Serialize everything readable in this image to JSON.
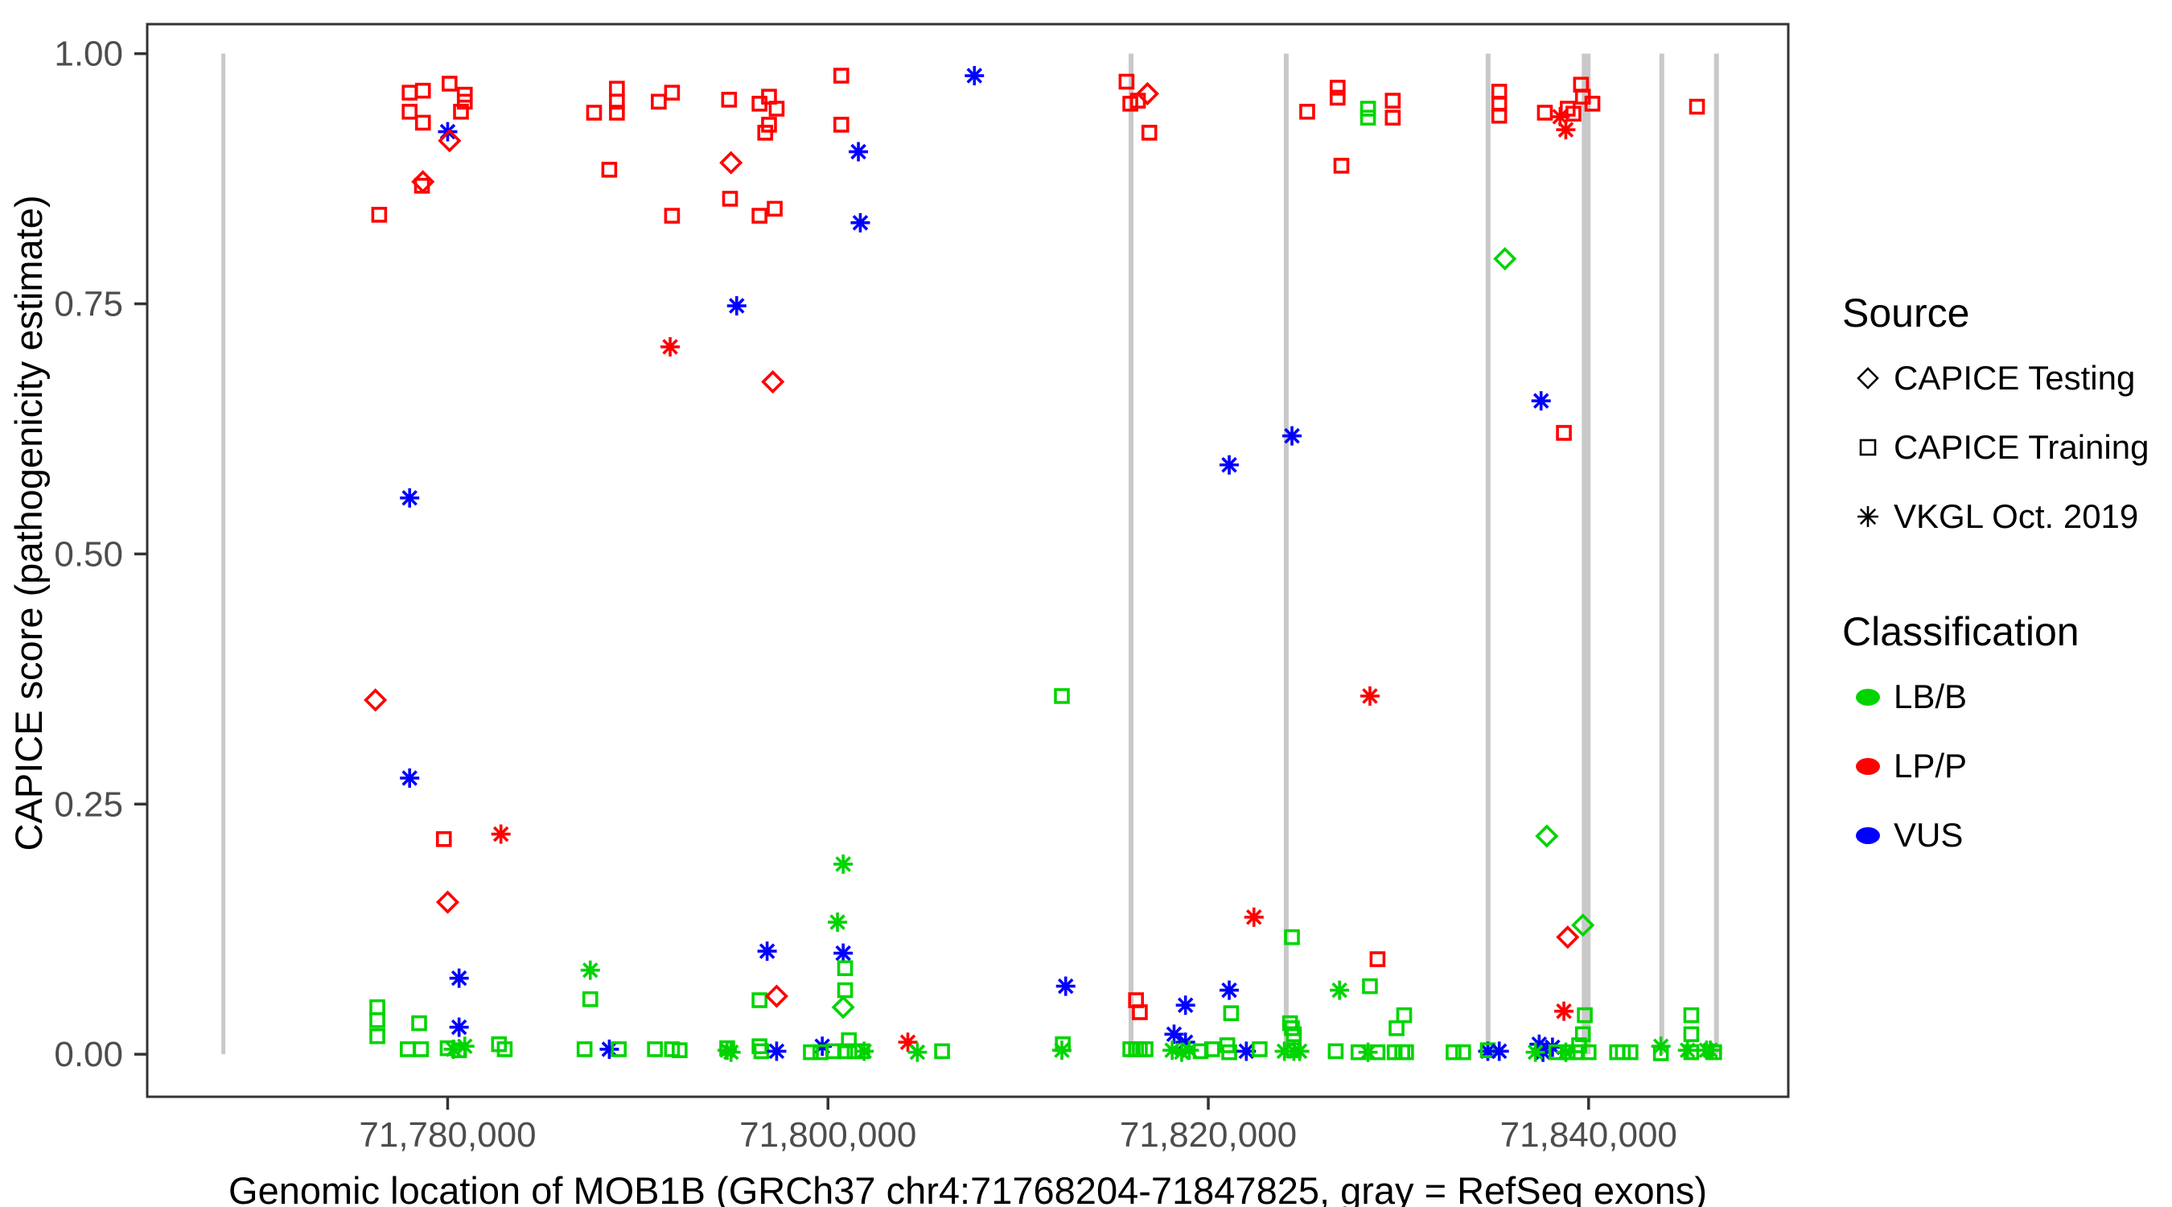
{
  "axes": {
    "y_title": "CAPICE score (pathogenicity estimate)",
    "x_title": "Genomic location of MOB1B (GRCh37 chr4:71768204-71847825, gray = RefSeq exons)",
    "y_ticks": [
      {
        "label": "1.00",
        "value": 1.0
      },
      {
        "label": "0.75",
        "value": 0.75
      },
      {
        "label": "0.50",
        "value": 0.5
      },
      {
        "label": "0.25",
        "value": 0.25
      },
      {
        "label": "0.00",
        "value": 0.0
      }
    ],
    "x_ticks": [
      {
        "label": "71,780,000",
        "value": 71780000
      },
      {
        "label": "71,800,000",
        "value": 71800000
      },
      {
        "label": "71,820,000",
        "value": 71820000
      },
      {
        "label": "71,840,000",
        "value": 71840000
      }
    ]
  },
  "legend": {
    "source_title": "Source",
    "source_items": [
      {
        "label": "CAPICE Testing",
        "shape": "diamond"
      },
      {
        "label": "CAPICE Training",
        "shape": "square"
      },
      {
        "label": "VKGL Oct. 2019",
        "shape": "asterisk"
      }
    ],
    "class_title": "Classification",
    "class_items": [
      {
        "label": "LB/B",
        "color": "#00D400"
      },
      {
        "label": "LP/P",
        "color": "#FF0000"
      },
      {
        "label": "VUS",
        "color": "#0000FF"
      }
    ]
  },
  "chart_data": {
    "type": "scatter",
    "title": "",
    "xlabel": "Genomic location of MOB1B (GRCh37 chr4:71768204-71847825, gray = RefSeq exons)",
    "ylabel": "CAPICE score (pathogenicity estimate)",
    "x_domain": [
      71764200,
      71850500
    ],
    "y_domain": [
      -0.0425,
      1.0295
    ],
    "grid": false,
    "legend_position": "right",
    "colors": {
      "g": "#00D400",
      "r": "#FF0000",
      "b": "#0000FF"
    },
    "shape_meaning": {
      "s": "CAPICE Training (square)",
      "d": "CAPICE Testing (diamond)",
      "a": "VKGL Oct. 2019 (asterisk)"
    },
    "class_meaning": {
      "g": "LB/B",
      "r": "LP/P",
      "b": "VUS"
    },
    "exon_color": "#C9C9C9",
    "exons": [
      {
        "pos": 71768204,
        "w": 5
      },
      {
        "pos": 71815938,
        "w": 6
      },
      {
        "pos": 71824099,
        "w": 6
      },
      {
        "pos": 71834714,
        "w": 6
      },
      {
        "pos": 71839870,
        "w": 11
      },
      {
        "pos": 71843848,
        "w": 6
      },
      {
        "pos": 71846723,
        "w": 6
      }
    ],
    "points": [
      [
        71778000,
        0.961,
        "s",
        "r"
      ],
      [
        71778700,
        0.963,
        "s",
        "r"
      ],
      [
        71778000,
        0.942,
        "s",
        "r"
      ],
      [
        71778700,
        0.931,
        "s",
        "r"
      ],
      [
        71780100,
        0.97,
        "s",
        "r"
      ],
      [
        71780900,
        0.959,
        "s",
        "r"
      ],
      [
        71780900,
        0.952,
        "s",
        "r"
      ],
      [
        71780700,
        0.942,
        "s",
        "r"
      ],
      [
        71780000,
        0.922,
        "a",
        "b"
      ],
      [
        71780100,
        0.913,
        "d",
        "r"
      ],
      [
        71778700,
        0.872,
        "d",
        "r"
      ],
      [
        71778650,
        0.868,
        "s",
        "r"
      ],
      [
        71776400,
        0.839,
        "s",
        "r"
      ],
      [
        71787700,
        0.941,
        "s",
        "r"
      ],
      [
        71788900,
        0.965,
        "s",
        "r"
      ],
      [
        71788900,
        0.952,
        "s",
        "r"
      ],
      [
        71788900,
        0.941,
        "s",
        "r"
      ],
      [
        71791100,
        0.952,
        "s",
        "r"
      ],
      [
        71791800,
        0.961,
        "s",
        "r"
      ],
      [
        71788500,
        0.884,
        "s",
        "r"
      ],
      [
        71791800,
        0.838,
        "s",
        "r"
      ],
      [
        71794800,
        0.954,
        "s",
        "r"
      ],
      [
        71796400,
        0.95,
        "s",
        "r"
      ],
      [
        71796900,
        0.957,
        "s",
        "r"
      ],
      [
        71797300,
        0.945,
        "s",
        "r"
      ],
      [
        71796900,
        0.929,
        "s",
        "r"
      ],
      [
        71796700,
        0.921,
        "s",
        "r"
      ],
      [
        71794900,
        0.891,
        "d",
        "r"
      ],
      [
        71794850,
        0.855,
        "s",
        "r"
      ],
      [
        71796400,
        0.838,
        "s",
        "r"
      ],
      [
        71797200,
        0.845,
        "s",
        "r"
      ],
      [
        71800700,
        0.978,
        "s",
        "r"
      ],
      [
        71800700,
        0.929,
        "s",
        "r"
      ],
      [
        71801600,
        0.902,
        "a",
        "b"
      ],
      [
        71801700,
        0.831,
        "a",
        "b"
      ],
      [
        71807700,
        0.978,
        "a",
        "b"
      ],
      [
        71795200,
        0.748,
        "a",
        "b"
      ],
      [
        71791700,
        0.707,
        "a",
        "r"
      ],
      [
        71797100,
        0.672,
        "d",
        "r"
      ],
      [
        71815700,
        0.972,
        "s",
        "r"
      ],
      [
        71816800,
        0.96,
        "d",
        "r"
      ],
      [
        71815900,
        0.95,
        "s",
        "r"
      ],
      [
        71816300,
        0.953,
        "s",
        "r"
      ],
      [
        71816900,
        0.921,
        "s",
        "r"
      ],
      [
        71825200,
        0.942,
        "s",
        "r"
      ],
      [
        71826800,
        0.966,
        "s",
        "r"
      ],
      [
        71826800,
        0.956,
        "s",
        "r"
      ],
      [
        71828400,
        0.945,
        "s",
        "g"
      ],
      [
        71828400,
        0.936,
        "s",
        "g"
      ],
      [
        71829700,
        0.953,
        "s",
        "r"
      ],
      [
        71829700,
        0.936,
        "s",
        "r"
      ],
      [
        71827000,
        0.888,
        "s",
        "r"
      ],
      [
        71835300,
        0.962,
        "s",
        "r"
      ],
      [
        71835300,
        0.95,
        "s",
        "r"
      ],
      [
        71835300,
        0.938,
        "s",
        "r"
      ],
      [
        71837700,
        0.941,
        "s",
        "r"
      ],
      [
        71838900,
        0.945,
        "s",
        "r"
      ],
      [
        71839200,
        0.94,
        "s",
        "r"
      ],
      [
        71839700,
        0.957,
        "s",
        "r"
      ],
      [
        71839600,
        0.969,
        "s",
        "r"
      ],
      [
        71840200,
        0.95,
        "s",
        "r"
      ],
      [
        71838500,
        0.937,
        "a",
        "r"
      ],
      [
        71838800,
        0.924,
        "a",
        "r"
      ],
      [
        71845700,
        0.947,
        "s",
        "r"
      ],
      [
        71778000,
        0.556,
        "a",
        "b"
      ],
      [
        71776200,
        0.354,
        "d",
        "r"
      ],
      [
        71778000,
        0.276,
        "a",
        "b"
      ],
      [
        71779800,
        0.215,
        "s",
        "r"
      ],
      [
        71782800,
        0.22,
        "a",
        "r"
      ],
      [
        71800800,
        0.19,
        "a",
        "g"
      ],
      [
        71780000,
        0.152,
        "d",
        "r"
      ],
      [
        71780600,
        0.076,
        "a",
        "b"
      ],
      [
        71780600,
        0.027,
        "a",
        "b"
      ],
      [
        71812500,
        0.068,
        "a",
        "b"
      ],
      [
        71822400,
        0.137,
        "a",
        "r"
      ],
      [
        71824400,
        0.117,
        "s",
        "g"
      ],
      [
        71824400,
        0.618,
        "a",
        "b"
      ],
      [
        71821100,
        0.589,
        "a",
        "b"
      ],
      [
        71837500,
        0.653,
        "a",
        "b"
      ],
      [
        71838700,
        0.621,
        "s",
        "r"
      ],
      [
        71835600,
        0.795,
        "d",
        "g"
      ],
      [
        71812300,
        0.358,
        "s",
        "g"
      ],
      [
        71828500,
        0.358,
        "a",
        "r"
      ],
      [
        71837800,
        0.218,
        "d",
        "g"
      ],
      [
        71838900,
        0.117,
        "d",
        "r"
      ],
      [
        71839700,
        0.129,
        "d",
        "g"
      ],
      [
        71838700,
        0.043,
        "a",
        "r"
      ],
      [
        71804200,
        0.012,
        "a",
        "r"
      ],
      [
        71776300,
        0.047,
        "s",
        "g"
      ],
      [
        71776300,
        0.034,
        "s",
        "g"
      ],
      [
        71776300,
        0.018,
        "s",
        "g"
      ],
      [
        71778500,
        0.031,
        "s",
        "g"
      ],
      [
        71777900,
        0.005,
        "s",
        "g"
      ],
      [
        71778600,
        0.005,
        "s",
        "g"
      ],
      [
        71780000,
        0.006,
        "s",
        "g"
      ],
      [
        71780300,
        0.005,
        "a",
        "g"
      ],
      [
        71780600,
        0.004,
        "s",
        "g"
      ],
      [
        71780900,
        0.008,
        "a",
        "g"
      ],
      [
        71782700,
        0.01,
        "s",
        "g"
      ],
      [
        71783000,
        0.005,
        "s",
        "g"
      ],
      [
        71787500,
        0.084,
        "a",
        "g"
      ],
      [
        71787500,
        0.055,
        "s",
        "g"
      ],
      [
        71787200,
        0.005,
        "s",
        "g"
      ],
      [
        71788500,
        0.005,
        "a",
        "b"
      ],
      [
        71789000,
        0.005,
        "s",
        "g"
      ],
      [
        71790900,
        0.005,
        "s",
        "g"
      ],
      [
        71791800,
        0.005,
        "s",
        "g"
      ],
      [
        71800500,
        0.132,
        "a",
        "g"
      ],
      [
        71796800,
        0.103,
        "a",
        "b"
      ],
      [
        71800800,
        0.101,
        "a",
        "b"
      ],
      [
        71800900,
        0.086,
        "s",
        "g"
      ],
      [
        71800900,
        0.064,
        "s",
        "g"
      ],
      [
        71800800,
        0.047,
        "d",
        "g"
      ],
      [
        71796400,
        0.054,
        "s",
        "g"
      ],
      [
        71797300,
        0.058,
        "d",
        "r"
      ],
      [
        71792200,
        0.004,
        "s",
        "g"
      ],
      [
        71794700,
        0.006,
        "s",
        "g"
      ],
      [
        71794700,
        0.004,
        "a",
        "g"
      ],
      [
        71794900,
        0.002,
        "a",
        "g"
      ],
      [
        71796400,
        0.008,
        "s",
        "g"
      ],
      [
        71796500,
        0.003,
        "s",
        "g"
      ],
      [
        71797300,
        0.003,
        "a",
        "b"
      ],
      [
        71799700,
        0.008,
        "a",
        "b"
      ],
      [
        71799100,
        0.002,
        "s",
        "g"
      ],
      [
        71799600,
        0.002,
        "s",
        "g"
      ],
      [
        71801100,
        0.014,
        "s",
        "g"
      ],
      [
        71800300,
        0.003,
        "s",
        "g"
      ],
      [
        71800900,
        0.003,
        "s",
        "g"
      ],
      [
        71801400,
        0.003,
        "s",
        "g"
      ],
      [
        71801800,
        0.003,
        "s",
        "g"
      ],
      [
        71801900,
        0.003,
        "a",
        "g"
      ],
      [
        71804700,
        0.002,
        "a",
        "g"
      ],
      [
        71806000,
        0.003,
        "s",
        "g"
      ],
      [
        71812300,
        0.004,
        "a",
        "g"
      ],
      [
        71812350,
        0.01,
        "s",
        "g"
      ],
      [
        71816200,
        0.054,
        "s",
        "r"
      ],
      [
        71816400,
        0.042,
        "s",
        "r"
      ],
      [
        71818800,
        0.049,
        "a",
        "b"
      ],
      [
        71821100,
        0.064,
        "a",
        "b"
      ],
      [
        71821200,
        0.041,
        "s",
        "g"
      ],
      [
        71826900,
        0.064,
        "a",
        "g"
      ],
      [
        71815900,
        0.005,
        "s",
        "g"
      ],
      [
        71816200,
        0.005,
        "s",
        "g"
      ],
      [
        71816400,
        0.005,
        "s",
        "g"
      ],
      [
        71816700,
        0.005,
        "s",
        "g"
      ],
      [
        71818200,
        0.02,
        "a",
        "b"
      ],
      [
        71818800,
        0.012,
        "a",
        "b"
      ],
      [
        71818100,
        0.004,
        "a",
        "g"
      ],
      [
        71818600,
        0.002,
        "a",
        "g"
      ],
      [
        71819000,
        0.004,
        "a",
        "g"
      ],
      [
        71819600,
        0.003,
        "s",
        "g"
      ],
      [
        71820200,
        0.005,
        "s",
        "g"
      ],
      [
        71821000,
        0.009,
        "s",
        "g"
      ],
      [
        71821100,
        0.002,
        "s",
        "g"
      ],
      [
        71822000,
        0.003,
        "a",
        "b"
      ],
      [
        71822700,
        0.005,
        "s",
        "g"
      ],
      [
        71824300,
        0.031,
        "s",
        "g"
      ],
      [
        71824400,
        0.026,
        "s",
        "g"
      ],
      [
        71824500,
        0.02,
        "s",
        "g"
      ],
      [
        71824000,
        0.003,
        "a",
        "g"
      ],
      [
        71824500,
        0.003,
        "a",
        "g"
      ],
      [
        71824500,
        0.004,
        "s",
        "g"
      ],
      [
        71824800,
        0.003,
        "a",
        "g"
      ],
      [
        71826700,
        0.003,
        "s",
        "g"
      ],
      [
        71828900,
        0.095,
        "s",
        "r"
      ],
      [
        71828500,
        0.068,
        "s",
        "g"
      ],
      [
        71830300,
        0.039,
        "s",
        "g"
      ],
      [
        71829900,
        0.026,
        "s",
        "g"
      ],
      [
        71839800,
        0.039,
        "s",
        "g"
      ],
      [
        71839700,
        0.02,
        "s",
        "g"
      ],
      [
        71839500,
        0.009,
        "s",
        "g"
      ],
      [
        71827900,
        0.002,
        "s",
        "g"
      ],
      [
        71828400,
        0.002,
        "a",
        "g"
      ],
      [
        71828900,
        0.002,
        "s",
        "g"
      ],
      [
        71829800,
        0.002,
        "s",
        "g"
      ],
      [
        71830200,
        0.002,
        "s",
        "g"
      ],
      [
        71830400,
        0.002,
        "s",
        "g"
      ],
      [
        71832900,
        0.002,
        "s",
        "g"
      ],
      [
        71833400,
        0.002,
        "s",
        "g"
      ],
      [
        71834700,
        0.003,
        "a",
        "b"
      ],
      [
        71834700,
        0.004,
        "s",
        "g"
      ],
      [
        71835300,
        0.003,
        "a",
        "b"
      ],
      [
        71837400,
        0.01,
        "a",
        "b"
      ],
      [
        71837600,
        0.002,
        "a",
        "b"
      ],
      [
        71838100,
        0.007,
        "a",
        "b"
      ],
      [
        71837200,
        0.002,
        "a",
        "g"
      ],
      [
        71838800,
        0.002,
        "a",
        "g"
      ],
      [
        71838300,
        0.002,
        "s",
        "g"
      ],
      [
        71838900,
        0.002,
        "s",
        "g"
      ],
      [
        71839400,
        0.002,
        "s",
        "g"
      ],
      [
        71840000,
        0.002,
        "s",
        "g"
      ],
      [
        71841500,
        0.002,
        "s",
        "g"
      ],
      [
        71841800,
        0.002,
        "s",
        "g"
      ],
      [
        71842200,
        0.002,
        "s",
        "g"
      ],
      [
        71843800,
        0.008,
        "a",
        "g"
      ],
      [
        71843800,
        0.001,
        "s",
        "g"
      ],
      [
        71845400,
        0.039,
        "s",
        "g"
      ],
      [
        71845400,
        0.02,
        "s",
        "g"
      ],
      [
        71845200,
        0.004,
        "a",
        "g"
      ],
      [
        71846200,
        0.004,
        "a",
        "g"
      ],
      [
        71846400,
        0.004,
        "a",
        "g"
      ],
      [
        71845400,
        0.002,
        "s",
        "g"
      ],
      [
        71846600,
        0.002,
        "s",
        "g"
      ]
    ]
  }
}
